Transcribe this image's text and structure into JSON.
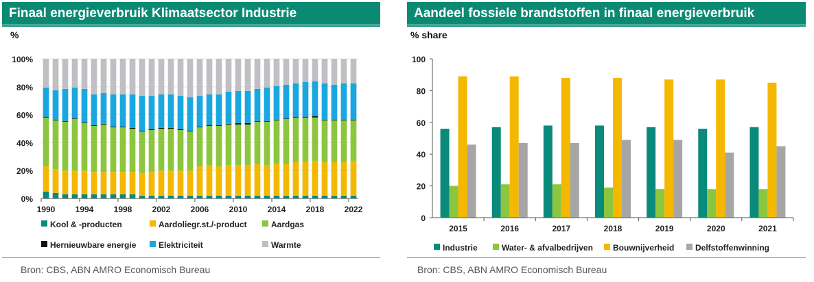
{
  "left_panel": {
    "title": "Finaal energieverbruik Klimaatsector Industrie",
    "unit": "%",
    "source": "Bron: CBS, ABN AMRO Economisch Bureau"
  },
  "right_panel": {
    "title": "Aandeel fossiele brandstoffen in finaal energieverbruik",
    "unit": "% share",
    "source": "Bron: CBS, ABN AMRO Economisch Bureau"
  },
  "chart_data": [
    {
      "type": "bar",
      "stacked": true,
      "percent": true,
      "title": "Finaal energieverbruik Klimaatsector Industrie",
      "ylabel": "%",
      "ylim": [
        0,
        100
      ],
      "yticks": [
        "0%",
        "20%",
        "40%",
        "60%",
        "80%",
        "100%"
      ],
      "x": [
        1990,
        1991,
        1992,
        1993,
        1994,
        1995,
        1996,
        1997,
        1998,
        1999,
        2000,
        2001,
        2002,
        2003,
        2004,
        2005,
        2006,
        2007,
        2008,
        2009,
        2010,
        2011,
        2012,
        2013,
        2014,
        2015,
        2016,
        2017,
        2018,
        2019,
        2020,
        2021,
        2022
      ],
      "xticks": [
        "1990",
        "1994",
        "1998",
        "2002",
        "2006",
        "2010",
        "2014",
        "2018",
        "2022"
      ],
      "series": [
        {
          "name": "Kool & -producten",
          "color": "#0a8a7a",
          "values": [
            5,
            4,
            3,
            3,
            3,
            3,
            3,
            3,
            3,
            3,
            2,
            2,
            2,
            2,
            2,
            2,
            2,
            2,
            2,
            2,
            2,
            2,
            2,
            2,
            2,
            2,
            2,
            2,
            2,
            2,
            2,
            2,
            2
          ]
        },
        {
          "name": "Aardoliegr.st./-product",
          "color": "#f4b800",
          "values": [
            18,
            17,
            17,
            17,
            17,
            16,
            16,
            16,
            16,
            16,
            16,
            17,
            18,
            18,
            18,
            18,
            21,
            22,
            21,
            22,
            22,
            22,
            23,
            22,
            23,
            23,
            24,
            24,
            25,
            24,
            24,
            24,
            25
          ]
        },
        {
          "name": "Aardgas",
          "color": "#8cc63f",
          "values": [
            35,
            35,
            35,
            37,
            34,
            33,
            34,
            32,
            32,
            31,
            30,
            30,
            30,
            30,
            29,
            28,
            28,
            28,
            29,
            29,
            29,
            29,
            30,
            31,
            31,
            32,
            32,
            32,
            31,
            30,
            30,
            30,
            29
          ]
        },
        {
          "name": "Hernieuwbare energie",
          "color": "#111111",
          "values": [
            0.5,
            0.5,
            0.5,
            0.5,
            0.5,
            0.5,
            0.5,
            0.5,
            0.5,
            0.5,
            0.5,
            0.5,
            0.5,
            0.5,
            0.5,
            0.5,
            0.5,
            0.5,
            0.5,
            0.5,
            1,
            1,
            0.5,
            0.5,
            0.5,
            0.5,
            0.5,
            0.5,
            1,
            0.5,
            0.5,
            0.5,
            0.5
          ]
        },
        {
          "name": "Elektriciteit",
          "color": "#1aa7e0",
          "values": [
            21,
            21,
            23,
            22,
            24,
            22,
            22,
            23,
            23,
            24,
            25,
            24,
            24,
            24,
            24,
            24,
            22,
            22,
            22,
            23,
            23,
            23,
            23,
            24,
            24,
            24,
            24,
            25,
            25,
            26,
            25,
            26,
            26
          ]
        },
        {
          "name": "Warmte",
          "color": "#c0c0c4",
          "values": [
            20.5,
            22.5,
            21.5,
            20.5,
            21.5,
            25.5,
            24.5,
            25.5,
            25.5,
            25.5,
            26.5,
            26.5,
            25.5,
            25.5,
            26.5,
            27.5,
            26.5,
            25.5,
            25.5,
            23.5,
            23,
            23,
            21.5,
            20.5,
            19.5,
            18.5,
            17.5,
            16.5,
            16,
            17.5,
            18.5,
            17.5,
            17.5
          ]
        }
      ],
      "legend_position": "bottom"
    },
    {
      "type": "bar",
      "title": "Aandeel fossiele brandstoffen in finaal energieverbruik",
      "ylabel": "% share",
      "ylim": [
        0,
        100
      ],
      "yticks": [
        "0",
        "20",
        "40",
        "60",
        "80",
        "100"
      ],
      "categories": [
        "2015",
        "2016",
        "2017",
        "2018",
        "2019",
        "2020",
        "2021"
      ],
      "series": [
        {
          "name": "Industrie",
          "color": "#0a8a7a",
          "values": [
            56,
            57,
            58,
            58,
            57,
            56,
            57
          ]
        },
        {
          "name": "Water- & afvalbedrijven",
          "color": "#8cc63f",
          "values": [
            20,
            21,
            21,
            19,
            18,
            18,
            18
          ]
        },
        {
          "name": "Bouwnijverheid",
          "color": "#f4b800",
          "values": [
            89,
            89,
            88,
            88,
            87,
            87,
            85
          ]
        },
        {
          "name": "Delfstoffenwinning",
          "color": "#a6a6a6",
          "values": [
            46,
            47,
            47,
            49,
            49,
            41,
            45
          ]
        }
      ],
      "legend_position": "bottom"
    }
  ]
}
